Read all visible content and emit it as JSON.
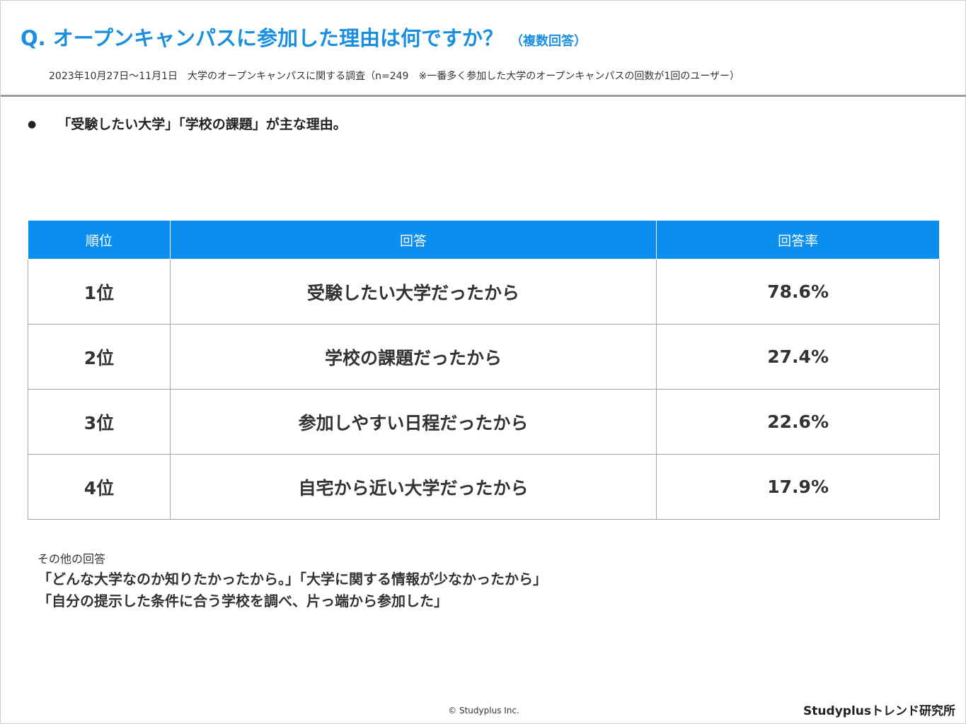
{
  "header": {
    "title": "Q. オープンキャンパスに参加した理由は何ですか？",
    "title_sub": "（複数回答）",
    "survey_note": "2023年10月27日～11月1日　大学のオープンキャンパスに関する調査（n=249　※一番多く参加した大学のオープンキャンパスの回数が1回のユーザー）"
  },
  "summary": {
    "bullet": "●",
    "text": "「受験したい大学」「学校の課題」が主な理由。"
  },
  "table": {
    "headers": [
      "順位",
      "回答",
      "回答率"
    ],
    "rows": [
      {
        "rank": "1位",
        "answer": "受験したい大学だったから",
        "rate": "78.6%"
      },
      {
        "rank": "2位",
        "answer": "学校の課題だったから",
        "rate": "27.4%"
      },
      {
        "rank": "3位",
        "answer": "参加しやすい日程だったから",
        "rate": "22.6%"
      },
      {
        "rank": "4位",
        "answer": "自宅から近い大学だったから",
        "rate": "17.9%"
      }
    ]
  },
  "other_answers": {
    "label": "その他の回答",
    "lines": [
      "「どんな大学なのか知りたかったから。」「大学に関する情報が少なかったから」",
      "「自分の提示した条件に合う学校を調べ、片っ端から参加した」"
    ]
  },
  "footer": {
    "copyright": "© Studyplus Inc.",
    "brand": "Studyplusトレンド研究所"
  },
  "colors": {
    "accent": "#1a8fe0",
    "table_header": "#0a8ef0"
  }
}
